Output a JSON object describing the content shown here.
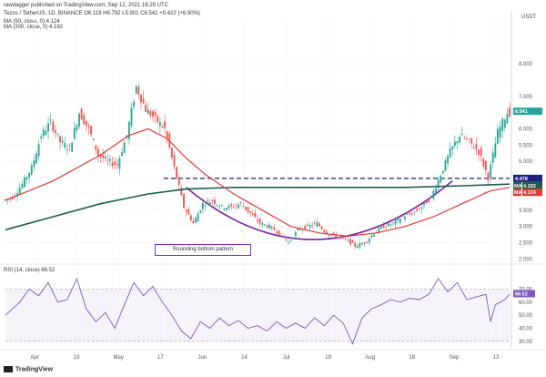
{
  "header": {
    "line1": "rawdagger published on TradingView.com, Sep 12, 2021 16:29 UTC",
    "line2": "Tezos / TetherUS, 1D, BINANCE  O6.119  H6.792  L5.901  C6.541  +0.422 (+6.90%)",
    "line3": "MA (50, close, 0)  4.124",
    "line4": "MA (200, close, 0)  4.192"
  },
  "rsi_header": "RSI (14, close)  66.52",
  "axis_unit": "USDT",
  "annotation": "Rounding bottom pattern",
  "footer": "TradingView",
  "colors": {
    "up": "#26a69a",
    "down": "#ef5350",
    "ma50": "#e53935",
    "ma200": "#1b5e4a",
    "rounding": "#7b1fa2",
    "rsi": "#7e57c2",
    "price_badge": "#26a69a",
    "breakout_badge": "#1a237e"
  },
  "chart_data": {
    "type": "candlestick",
    "y_ticks": [
      "8.000",
      "7.000",
      "6.000",
      "5.500",
      "5.000",
      "4.500",
      "4.000",
      "3.500",
      "3.000",
      "2.500",
      "2.000"
    ],
    "ylim": [
      1.9,
      9.4
    ],
    "x_ticks": [
      "Apr",
      "19",
      "May",
      "17",
      "Jun",
      "14",
      "Jul",
      "19",
      "Aug",
      "16",
      "Sep",
      "13"
    ],
    "price_points": [
      [
        0,
        3.8
      ],
      [
        4,
        3.9
      ],
      [
        8,
        4.3
      ],
      [
        12,
        4.8
      ],
      [
        16,
        5.8
      ],
      [
        20,
        6.2
      ],
      [
        24,
        5.6
      ],
      [
        28,
        5.4
      ],
      [
        32,
        6.5
      ],
      [
        36,
        6.0
      ],
      [
        40,
        5.2
      ],
      [
        44,
        5.0
      ],
      [
        48,
        4.9
      ],
      [
        52,
        5.8
      ],
      [
        56,
        7.3
      ],
      [
        60,
        6.6
      ],
      [
        64,
        6.3
      ],
      [
        68,
        6.0
      ],
      [
        72,
        4.8
      ],
      [
        76,
        3.6
      ],
      [
        80,
        3.1
      ],
      [
        84,
        3.7
      ],
      [
        88,
        3.8
      ],
      [
        92,
        3.6
      ],
      [
        96,
        3.6
      ],
      [
        100,
        3.7
      ],
      [
        104,
        3.4
      ],
      [
        108,
        3.1
      ],
      [
        112,
        3.0
      ],
      [
        116,
        2.8
      ],
      [
        120,
        2.5
      ],
      [
        124,
        2.9
      ],
      [
        128,
        3.0
      ],
      [
        132,
        3.1
      ],
      [
        136,
        2.8
      ],
      [
        140,
        2.7
      ],
      [
        144,
        2.6
      ],
      [
        148,
        2.4
      ],
      [
        152,
        2.5
      ],
      [
        156,
        2.8
      ],
      [
        160,
        3.0
      ],
      [
        164,
        3.1
      ],
      [
        168,
        3.3
      ],
      [
        172,
        3.4
      ],
      [
        176,
        3.6
      ],
      [
        180,
        3.9
      ],
      [
        184,
        4.6
      ],
      [
        188,
        5.3
      ],
      [
        192,
        5.8
      ],
      [
        196,
        5.6
      ],
      [
        200,
        5.3
      ],
      [
        204,
        4.5
      ],
      [
        208,
        5.9
      ],
      [
        212,
        6.5
      ]
    ],
    "ma50": [
      [
        0,
        3.8
      ],
      [
        20,
        4.4
      ],
      [
        40,
        5.2
      ],
      [
        52,
        5.8
      ],
      [
        60,
        6.0
      ],
      [
        68,
        5.7
      ],
      [
        76,
        5.1
      ],
      [
        84,
        4.6
      ],
      [
        96,
        4.0
      ],
      [
        108,
        3.5
      ],
      [
        120,
        3.0
      ],
      [
        132,
        2.8
      ],
      [
        144,
        2.7
      ],
      [
        156,
        2.8
      ],
      [
        168,
        3.0
      ],
      [
        180,
        3.3
      ],
      [
        192,
        3.7
      ],
      [
        204,
        4.1
      ],
      [
        212,
        4.2
      ]
    ],
    "ma200": [
      [
        0,
        2.9
      ],
      [
        20,
        3.3
      ],
      [
        40,
        3.7
      ],
      [
        60,
        4.0
      ],
      [
        76,
        4.15
      ],
      [
        96,
        4.2
      ],
      [
        120,
        4.2
      ],
      [
        144,
        4.2
      ],
      [
        168,
        4.2
      ],
      [
        192,
        4.25
      ],
      [
        212,
        4.3
      ]
    ],
    "resistance_level": 4.478,
    "current_price": 6.541,
    "price_badge_label": "6.541",
    "breakout_badge_label": "4.478",
    "ma200_badge_label": "4.192",
    "ma50_badge_label": "4.124",
    "ma_badge_tag": "MA",
    "rsi_ticks": [
      "70.00",
      "60.00",
      "50.00",
      "40.00",
      "30.00"
    ],
    "rsi_badge_label": "66.52",
    "rsi_ylim": [
      25,
      85
    ],
    "rsi_points": [
      [
        0,
        50
      ],
      [
        6,
        60
      ],
      [
        10,
        70
      ],
      [
        14,
        65
      ],
      [
        18,
        75
      ],
      [
        22,
        60
      ],
      [
        26,
        62
      ],
      [
        30,
        78
      ],
      [
        34,
        55
      ],
      [
        38,
        45
      ],
      [
        42,
        52
      ],
      [
        46,
        40
      ],
      [
        50,
        58
      ],
      [
        54,
        75
      ],
      [
        58,
        65
      ],
      [
        62,
        72
      ],
      [
        66,
        60
      ],
      [
        70,
        50
      ],
      [
        74,
        38
      ],
      [
        78,
        32
      ],
      [
        82,
        45
      ],
      [
        86,
        40
      ],
      [
        90,
        48
      ],
      [
        94,
        42
      ],
      [
        98,
        46
      ],
      [
        102,
        40
      ],
      [
        106,
        42
      ],
      [
        110,
        38
      ],
      [
        114,
        45
      ],
      [
        118,
        40
      ],
      [
        122,
        44
      ],
      [
        126,
        40
      ],
      [
        130,
        48
      ],
      [
        134,
        42
      ],
      [
        138,
        50
      ],
      [
        142,
        44
      ],
      [
        146,
        28
      ],
      [
        150,
        48
      ],
      [
        154,
        55
      ],
      [
        158,
        58
      ],
      [
        162,
        62
      ],
      [
        166,
        60
      ],
      [
        170,
        63
      ],
      [
        174,
        62
      ],
      [
        178,
        66
      ],
      [
        182,
        78
      ],
      [
        186,
        68
      ],
      [
        190,
        75
      ],
      [
        194,
        62
      ],
      [
        198,
        64
      ],
      [
        202,
        66
      ],
      [
        204,
        45
      ],
      [
        206,
        58
      ],
      [
        210,
        62
      ],
      [
        212,
        66
      ]
    ]
  }
}
